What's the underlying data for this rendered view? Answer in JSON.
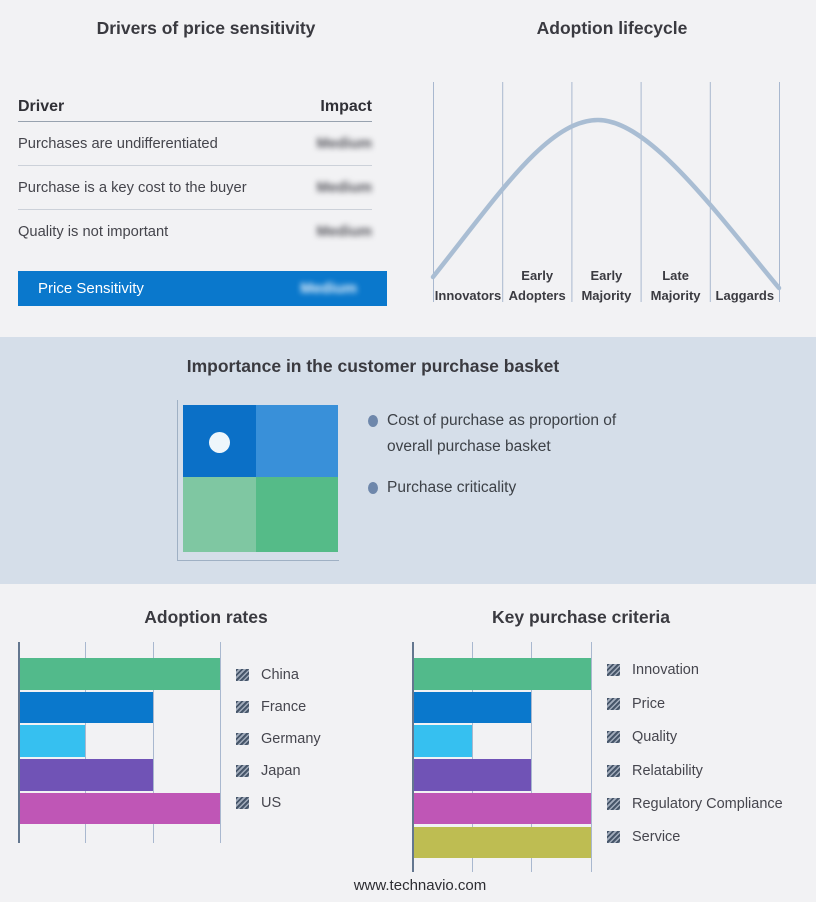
{
  "page": {
    "footer": "www.technavio.com",
    "background": "#f2f2f4",
    "band_background": "#d5dee9"
  },
  "drivers_table": {
    "title": "Drivers of price sensitivity",
    "columns": {
      "driver": "Driver",
      "impact": "Impact"
    },
    "rows": [
      {
        "driver": "Purchases are undifferentiated",
        "impact": "Medium"
      },
      {
        "driver": "Purchase is a key cost to the buyer",
        "impact": "Medium"
      },
      {
        "driver": "Quality is not important",
        "impact": "Medium"
      }
    ],
    "summary": {
      "label": "Price Sensitivity",
      "impact": "Medium"
    },
    "highlight_color": "#0a78cc",
    "impact_values_blurred": true
  },
  "basket": {
    "title": "Importance in the customer purchase basket",
    "bullets": [
      "Cost of purchase as proportion of overall purchase basket",
      "Purchase criticality"
    ],
    "matrix": {
      "top_left": "#0b70c7",
      "top_right": "#3990d9",
      "bottom_left": "#7fc7a2",
      "bottom_right": "#55bb88",
      "marker": "white dot in top-left quadrant"
    }
  },
  "chart_data": [
    {
      "type": "line",
      "title": "Adoption lifecycle",
      "curve": "bell",
      "x_labels": [
        "Innovators",
        "Early Adopters",
        "Early Majority",
        "Late Majority",
        "Laggards"
      ],
      "peak_segment": "Early Majority",
      "curve_color": "#a9bdd3",
      "gridline_color": "#a9b8cf",
      "grid": true,
      "legend_position": "none"
    },
    {
      "type": "bar",
      "orientation": "horizontal",
      "title": "Adoption rates",
      "categories": [
        "China",
        "France",
        "Germany",
        "Japan",
        "US"
      ],
      "values": [
        3,
        2,
        1,
        2,
        3
      ],
      "xlim": [
        0,
        3
      ],
      "grid": true,
      "legend_position": "right",
      "colors": [
        "#52ba8b",
        "#0a78cc",
        "#36c0f0",
        "#7053b6",
        "#bf56b6"
      ]
    },
    {
      "type": "bar",
      "orientation": "horizontal",
      "title": "Key purchase criteria",
      "categories": [
        "Innovation",
        "Price",
        "Quality",
        "Relatability",
        "Regulatory Compliance",
        "Service"
      ],
      "values": [
        3,
        2,
        1,
        2,
        3,
        3
      ],
      "xlim": [
        0,
        3
      ],
      "grid": true,
      "legend_position": "right",
      "colors": [
        "#52ba8b",
        "#0a78cc",
        "#36c0f0",
        "#7053b6",
        "#bf56b6",
        "#bebd52"
      ]
    }
  ]
}
